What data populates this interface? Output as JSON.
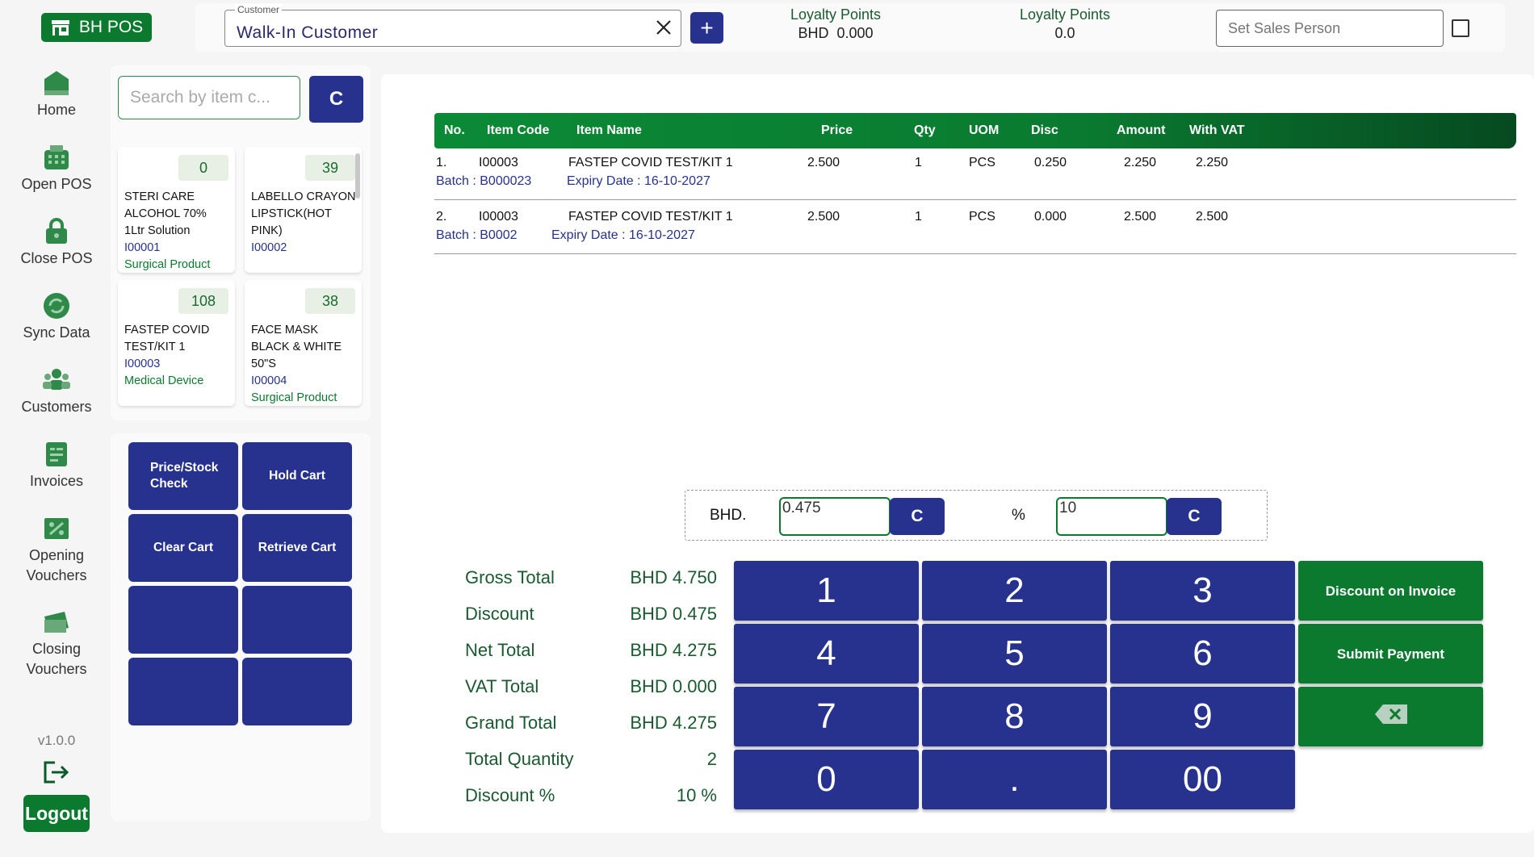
{
  "app": {
    "logo_text": "BH POS",
    "version": "v1.0.0",
    "logout_label": "Logout"
  },
  "sidebar": {
    "items": [
      {
        "label": "Home",
        "icon": "home-icon"
      },
      {
        "label": "Open POS",
        "icon": "register-icon"
      },
      {
        "label": "Close POS",
        "icon": "lock-icon"
      },
      {
        "label": "Sync Data",
        "icon": "sync-icon"
      },
      {
        "label": "Customers",
        "icon": "customers-icon"
      },
      {
        "label": "Invoices",
        "icon": "invoice-icon"
      },
      {
        "label": "Opening Vouchers",
        "icon": "opening-voucher-icon"
      },
      {
        "label": "Closing Vouchers",
        "icon": "closing-voucher-icon"
      }
    ]
  },
  "topbar": {
    "customer_label": "Customer",
    "customer_value": "Walk-In Customer",
    "loyalty": [
      {
        "label": "Loyalty Points",
        "value": "BHD  0.000"
      },
      {
        "label": "Loyalty Points",
        "value": "0.0"
      }
    ],
    "sales_person_placeholder": "Set Sales Person"
  },
  "search": {
    "placeholder": "Search by item c...",
    "clear_label": "C"
  },
  "products": [
    {
      "stock": "0",
      "name": "STERI CARE ALCOHOL 70% 1Ltr Solution",
      "code": "I00001",
      "category": "Surgical Product"
    },
    {
      "stock": "39",
      "name": "LABELLO CRAYON LIPSTICK(HOT PINK)",
      "code": "I00002",
      "category": ""
    },
    {
      "stock": "108",
      "name": "FASTEP COVID TEST/KIT 1",
      "code": "I00003",
      "category": "Medical Device"
    },
    {
      "stock": "38",
      "name": "FACE MASK BLACK & WHITE 50\"S",
      "code": "I00004",
      "category": "Surgical Product"
    }
  ],
  "actions": {
    "price_stock": "Price/Stock Check",
    "hold_cart": "Hold Cart",
    "clear_cart": "Clear Cart",
    "retrieve_cart": "Retrieve Cart"
  },
  "cart": {
    "columns": [
      "No.",
      "Item Code",
      "Item Name",
      "Price",
      "Qty",
      "UOM",
      "Disc",
      "Amount",
      "With VAT"
    ],
    "rows": [
      {
        "no": "1.",
        "code": "I00003",
        "name": "FASTEP COVID TEST/KIT 1",
        "price": "2.500",
        "qty": "1",
        "uom": "PCS",
        "disc": "0.250",
        "amount": "2.250",
        "with_vat": "2.250",
        "batch": "Batch : B000023",
        "expiry": "Expiry Date : 16-10-2027"
      },
      {
        "no": "2.",
        "code": "I00003",
        "name": "FASTEP COVID TEST/KIT 1",
        "price": "2.500",
        "qty": "1",
        "uom": "PCS",
        "disc": "0.000",
        "amount": "2.500",
        "with_vat": "2.500",
        "batch": "Batch : B0002",
        "expiry": "Expiry Date : 16-10-2027"
      }
    ]
  },
  "discount": {
    "currency_label": "BHD.",
    "amount_value": "0.475",
    "percent_label": "%",
    "percent_value": "10",
    "clear_label": "C"
  },
  "totals": [
    {
      "label": "Gross Total",
      "value": "BHD 4.750"
    },
    {
      "label": "Discount",
      "value": "BHD 0.475"
    },
    {
      "label": "Net Total",
      "value": "BHD 4.275"
    },
    {
      "label": "VAT Total",
      "value": "BHD 0.000"
    },
    {
      "label": "Grand Total",
      "value": "BHD 4.275"
    },
    {
      "label": "Total Quantity",
      "value": "2"
    },
    {
      "label": "Discount %",
      "value": "10 %"
    }
  ],
  "keypad": {
    "keys": [
      "1",
      "2",
      "3",
      "4",
      "5",
      "6",
      "7",
      "8",
      "9",
      "0",
      ".",
      "00"
    ],
    "discount_on_invoice": "Discount on Invoice",
    "submit_payment": "Submit Payment",
    "backspace_icon": "backspace-icon"
  },
  "colors": {
    "brand_green": "#0b7a2e",
    "brand_blue": "#27328f"
  }
}
